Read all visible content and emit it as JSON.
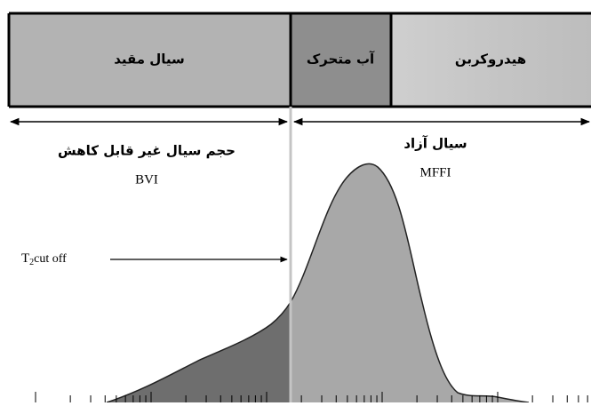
{
  "header": {
    "bound_fluid": "سیال مقید",
    "movable_water": "آب متحرک",
    "hydrocarbon": "هیدروکربن"
  },
  "labels": {
    "bvi_title": "حجم سیال غیر قابل کاهش",
    "bvi": "BVI",
    "free_title": "سیال آزاد",
    "mffi": "MFFI",
    "cutoff": {
      "symbol": "T",
      "subscript": "2",
      "text": "cut off"
    }
  }
}
